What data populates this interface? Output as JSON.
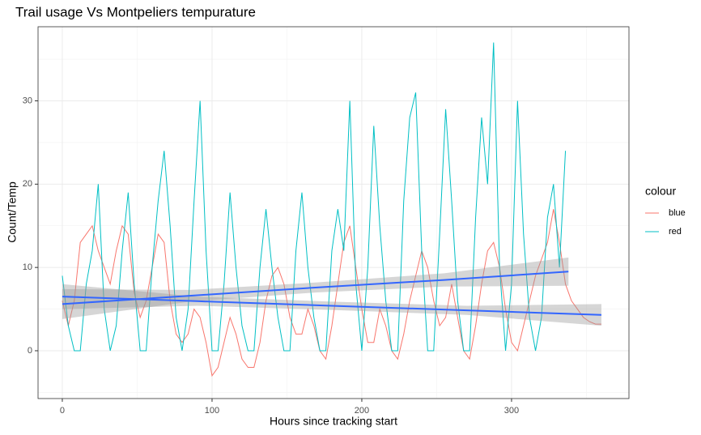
{
  "chart_data": {
    "type": "line",
    "title": "Trail usage Vs Montpeliers tempurature",
    "x_label": "Hours since tracking start",
    "y_label": "Count/Temp",
    "legend_title": "colour",
    "xlim": [
      -16.2,
      378.4
    ],
    "ylim": [
      -5.74,
      38.9
    ],
    "xticks": [
      0,
      100,
      200,
      300
    ],
    "yticks": [
      0,
      10,
      20,
      30
    ],
    "grid": true,
    "legend_position": "right",
    "series": [
      {
        "name": "blue",
        "color": "#F8766D",
        "x": [
          0,
          4,
          8,
          12,
          16,
          20,
          24,
          28,
          32,
          36,
          40,
          44,
          48,
          52,
          56,
          60,
          64,
          68,
          72,
          76,
          80,
          84,
          88,
          92,
          96,
          100,
          104,
          108,
          112,
          116,
          120,
          124,
          128,
          132,
          136,
          140,
          144,
          148,
          152,
          156,
          160,
          164,
          168,
          172,
          176,
          180,
          184,
          188,
          192,
          196,
          200,
          204,
          208,
          212,
          216,
          220,
          224,
          228,
          232,
          236,
          240,
          244,
          248,
          252,
          256,
          260,
          264,
          268,
          272,
          276,
          280,
          284,
          288,
          292,
          296,
          300,
          304,
          308,
          312,
          316,
          320,
          324,
          328,
          332,
          336,
          340,
          344,
          348,
          352,
          356,
          360
        ],
        "values": [
          6,
          3,
          6,
          13,
          14,
          15,
          12,
          10,
          8,
          12,
          15,
          14,
          7,
          4,
          6,
          10,
          14,
          13,
          6,
          2,
          1,
          2,
          5,
          4,
          1,
          -3,
          -2,
          1,
          4,
          2,
          -1,
          -2,
          -2,
          1,
          6,
          9,
          10,
          8,
          4,
          2,
          2,
          5,
          3,
          0,
          -1,
          3,
          8,
          13,
          15,
          10,
          5,
          1,
          1,
          5,
          3,
          0,
          -1,
          2,
          6,
          9,
          12,
          10,
          6,
          3,
          4,
          8,
          4,
          0,
          -1,
          3,
          8,
          12,
          13,
          10,
          5,
          1,
          0,
          3,
          6,
          9,
          11,
          13,
          17,
          13,
          8,
          6,
          5,
          4,
          3.5,
          3.2,
          3.2
        ]
      },
      {
        "name": "red",
        "color": "#00BFC4",
        "x": [
          0,
          4,
          8,
          12,
          16,
          20,
          24,
          28,
          32,
          36,
          40,
          44,
          48,
          52,
          56,
          60,
          64,
          68,
          72,
          76,
          80,
          84,
          88,
          92,
          96,
          100,
          104,
          108,
          112,
          116,
          120,
          124,
          128,
          132,
          136,
          140,
          144,
          148,
          152,
          156,
          160,
          164,
          168,
          172,
          176,
          180,
          184,
          188,
          192,
          196,
          200,
          204,
          208,
          212,
          216,
          220,
          224,
          228,
          232,
          236,
          240,
          244,
          248,
          252,
          256,
          260,
          264,
          268,
          272,
          276,
          280,
          284,
          288,
          292,
          296,
          300,
          304,
          308,
          312,
          316,
          320,
          324,
          328,
          332,
          336
        ],
        "values": [
          9,
          3,
          0,
          0,
          8,
          12,
          20,
          5,
          0,
          3,
          12,
          19,
          8,
          0,
          0,
          10,
          18,
          24,
          15,
          4,
          0,
          5,
          18,
          30,
          12,
          0,
          0,
          8,
          19,
          10,
          3,
          0,
          0,
          10,
          17,
          10,
          4,
          0,
          0,
          12,
          19,
          10,
          4,
          0,
          0,
          12,
          17,
          12,
          30,
          8,
          0,
          10,
          27,
          15,
          6,
          0,
          0,
          18,
          28,
          31,
          12,
          0,
          0,
          14,
          29,
          18,
          6,
          0,
          0,
          16,
          28,
          20,
          37,
          10,
          0,
          8,
          30,
          14,
          4,
          0,
          4,
          16,
          20,
          10,
          24
        ]
      }
    ],
    "smooth": [
      {
        "color": "#3366FF",
        "x": [
          0,
          90,
          180,
          270,
          360
        ],
        "y": [
          6.5,
          5.95,
          5.4,
          4.85,
          4.3
        ],
        "ymin": [
          5.0,
          5.4,
          4.9,
          4.3,
          3.0
        ],
        "ymax": [
          8.0,
          6.5,
          5.9,
          5.4,
          5.6
        ]
      },
      {
        "color": "#3366FF",
        "x": [
          0,
          85,
          170,
          255,
          338
        ],
        "y": [
          5.6,
          6.6,
          7.6,
          8.5,
          9.5
        ],
        "ymin": [
          3.8,
          5.9,
          7.0,
          7.7,
          7.8
        ],
        "ymax": [
          7.4,
          7.3,
          8.2,
          9.3,
          11.2
        ]
      }
    ]
  }
}
